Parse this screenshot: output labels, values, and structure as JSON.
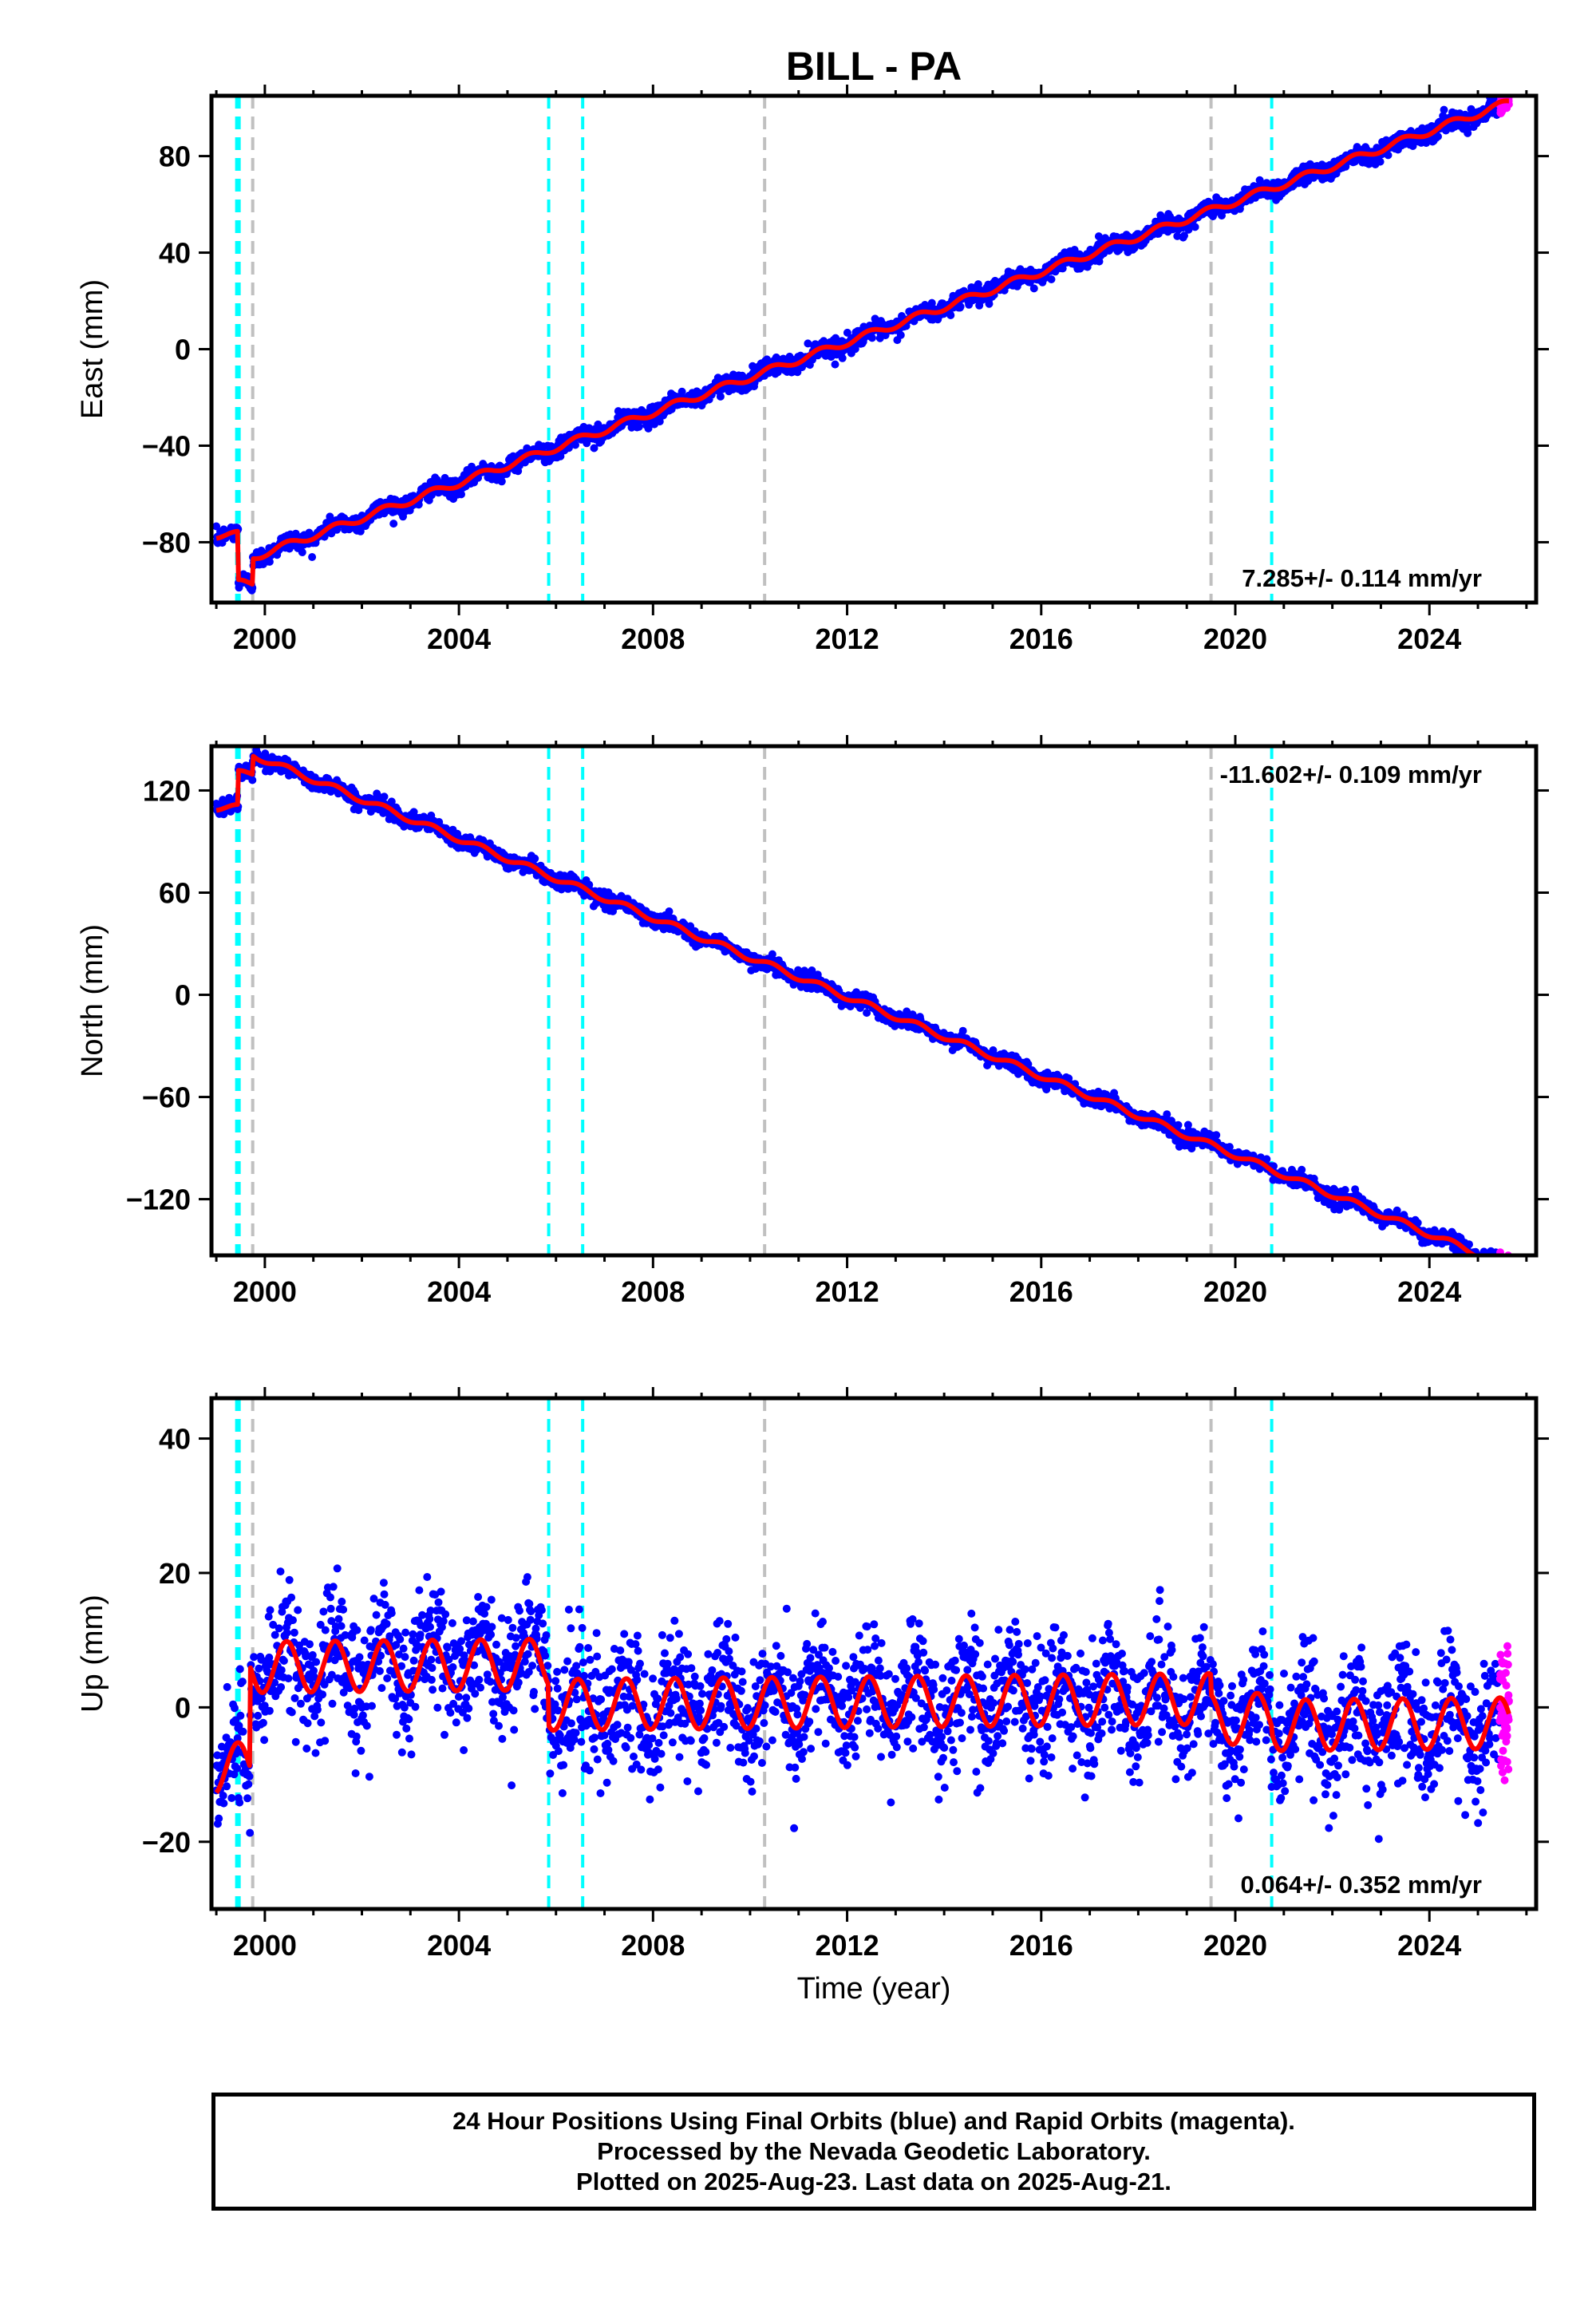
{
  "title": "BILL - PA",
  "colors": {
    "final_orbits": "#0000ff",
    "rapid_orbits": "#ff00ff",
    "model": "#ff0000",
    "equipment_change": "#00ffff",
    "other_event": "#c0c0c0"
  },
  "chart_data": [
    {
      "type": "scatter",
      "panel": "east",
      "ylabel": "East (mm)",
      "xlabel": "",
      "xlim": [
        1998.9,
        2026.2
      ],
      "ylim": [
        -105,
        105
      ],
      "xticks": [
        "2000",
        "2004",
        "2008",
        "2012",
        "2016",
        "2020",
        "2024"
      ],
      "yticks": [
        "80",
        "40",
        "0",
        "−40",
        "−80"
      ],
      "rate_label": "7.285+/- 0.114 mm/yr",
      "rate_position": "bottom-right",
      "trend": {
        "rate_mm_per_yr": 7.285,
        "value_at_2000": -84.5,
        "annual_amplitude": 1.5
      },
      "offsets": [
        {
          "t": 1999.0,
          "t_end": 1999.45,
          "value": -77
        },
        {
          "t": 1999.45,
          "t_end": 1999.75,
          "value": -97
        }
      ],
      "noise_mm": 1.8,
      "final_range": [
        1999.0,
        2025.45
      ],
      "rapid_range": [
        2025.45,
        2025.64
      ],
      "series": [
        {
          "name": "Final Orbits (blue)",
          "role": "final"
        },
        {
          "name": "Rapid Orbits (magenta)",
          "role": "rapid"
        }
      ]
    },
    {
      "type": "scatter",
      "panel": "north",
      "ylabel": "North (mm)",
      "xlabel": "",
      "xlim": [
        1998.9,
        2026.2
      ],
      "ylim": [
        -153,
        146
      ],
      "xticks": [
        "2000",
        "2004",
        "2008",
        "2012",
        "2016",
        "2020",
        "2024"
      ],
      "yticks": [
        "120",
        "60",
        "0",
        "−60",
        "−120"
      ],
      "rate_label": "-11.602+/- 0.109 mm/yr",
      "rate_position": "top-right",
      "trend": {
        "rate_mm_per_yr": -11.602,
        "value_at_2000": 138,
        "annual_amplitude": 1.8
      },
      "offsets": [
        {
          "t": 1999.0,
          "t_end": 1999.45,
          "value": 110
        },
        {
          "t": 1999.45,
          "t_end": 1999.75,
          "value": 130
        }
      ],
      "noise_mm": 2.2,
      "final_range": [
        1999.0,
        2025.45
      ],
      "rapid_range": [
        2025.45,
        2025.64
      ],
      "series": [
        {
          "name": "Final Orbits (blue)",
          "role": "final"
        },
        {
          "name": "Rapid Orbits (magenta)",
          "role": "rapid"
        }
      ]
    },
    {
      "type": "scatter",
      "panel": "up",
      "ylabel": "Up (mm)",
      "xlabel": "Time (year)",
      "xlim": [
        1998.9,
        2026.2
      ],
      "ylim": [
        -30,
        46
      ],
      "xticks": [
        "2000",
        "2004",
        "2008",
        "2012",
        "2016",
        "2020",
        "2024"
      ],
      "yticks": [
        "40",
        "20",
        "0",
        "−20"
      ],
      "rate_label": "0.064+/- 0.352 mm/yr",
      "rate_position": "bottom-right",
      "trend": {
        "rate_mm_per_yr": 0.064,
        "value_at_2000": 0.5,
        "annual_amplitude": 3.8
      },
      "segment_means": [
        {
          "t": 1999.0,
          "t_end": 1999.7,
          "value": -9
        },
        {
          "t": 1999.7,
          "t_end": 2005.85,
          "value": 6
        },
        {
          "t": 2005.85,
          "t_end": 2019.5,
          "value": 0
        },
        {
          "t": 2019.5,
          "t_end": 2020.75,
          "value": -3
        },
        {
          "t": 2020.75,
          "t_end": 2025.7,
          "value": -4
        }
      ],
      "noise_mm": 4.5,
      "final_range": [
        1999.0,
        2025.45
      ],
      "rapid_range": [
        2025.45,
        2025.64
      ],
      "series": [
        {
          "name": "Final Orbits (blue)",
          "role": "final"
        },
        {
          "name": "Rapid Orbits (magenta)",
          "role": "rapid"
        }
      ]
    }
  ],
  "events": {
    "equipment_change": [
      1999.42,
      1999.47,
      2005.85,
      2006.55,
      2020.75
    ],
    "other": [
      1999.75,
      2010.3,
      2019.5
    ]
  },
  "footer": {
    "line1": "24 Hour Positions Using Final Orbits (blue) and Rapid Orbits (magenta).",
    "line2": "Processed by the Nevada Geodetic Laboratory.",
    "line3": "Plotted on 2025-Aug-23. Last data on 2025-Aug-21."
  }
}
